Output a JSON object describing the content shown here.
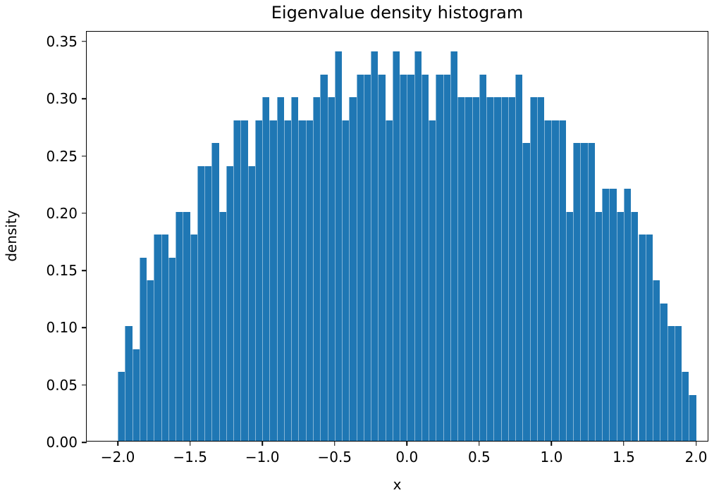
{
  "chart_data": {
    "type": "bar",
    "subtype": "histogram",
    "title": "Eigenvalue density histogram",
    "xlabel": "x",
    "ylabel": "density",
    "bar_color": "#1f77b4",
    "bin_start": -2.0,
    "bin_width": 0.05,
    "xlim": [
      -2.215,
      2.09
    ],
    "ylim": [
      0,
      0.3586
    ],
    "grid": false,
    "legend": null,
    "values": [
      0.06,
      0.1,
      0.08,
      0.16,
      0.14,
      0.18,
      0.18,
      0.16,
      0.2,
      0.2,
      0.18,
      0.24,
      0.24,
      0.26,
      0.2,
      0.24,
      0.28,
      0.28,
      0.24,
      0.28,
      0.3,
      0.28,
      0.3,
      0.28,
      0.3,
      0.28,
      0.28,
      0.3,
      0.32,
      0.3,
      0.34,
      0.28,
      0.3,
      0.32,
      0.32,
      0.34,
      0.32,
      0.28,
      0.34,
      0.32,
      0.32,
      0.34,
      0.32,
      0.28,
      0.32,
      0.32,
      0.34,
      0.3,
      0.3,
      0.3,
      0.32,
      0.3,
      0.3,
      0.3,
      0.3,
      0.32,
      0.26,
      0.3,
      0.3,
      0.28,
      0.28,
      0.28,
      0.2,
      0.26,
      0.26,
      0.26,
      0.2,
      0.22,
      0.22,
      0.2,
      0.22,
      0.2,
      0.18,
      0.18,
      0.14,
      0.12,
      0.1,
      0.1,
      0.06,
      0.04
    ],
    "xticks": [
      {
        "v": -2.0,
        "label": "−2.0"
      },
      {
        "v": -1.5,
        "label": "−1.5"
      },
      {
        "v": -1.0,
        "label": "−1.0"
      },
      {
        "v": -0.5,
        "label": "−0.5"
      },
      {
        "v": 0.0,
        "label": "0.0"
      },
      {
        "v": 0.5,
        "label": "0.5"
      },
      {
        "v": 1.0,
        "label": "1.0"
      },
      {
        "v": 1.5,
        "label": "1.5"
      },
      {
        "v": 2.0,
        "label": "2.0"
      }
    ],
    "yticks": [
      {
        "v": 0.0,
        "label": "0.00"
      },
      {
        "v": 0.05,
        "label": "0.05"
      },
      {
        "v": 0.1,
        "label": "0.10"
      },
      {
        "v": 0.15,
        "label": "0.15"
      },
      {
        "v": 0.2,
        "label": "0.20"
      },
      {
        "v": 0.25,
        "label": "0.25"
      },
      {
        "v": 0.3,
        "label": "0.30"
      },
      {
        "v": 0.35,
        "label": "0.35"
      }
    ]
  }
}
